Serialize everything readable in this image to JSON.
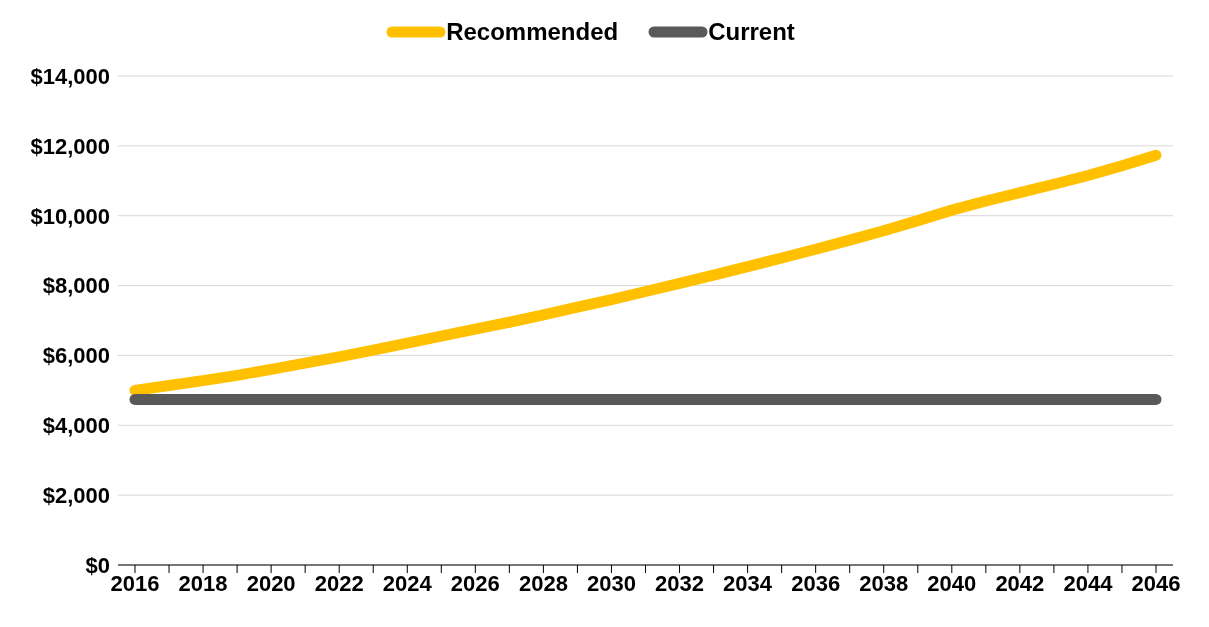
{
  "chart_data": {
    "type": "line",
    "categories": [
      "2016",
      null,
      "2018",
      null,
      "2020",
      null,
      "2022",
      null,
      "2024",
      null,
      "2026",
      null,
      "2028",
      null,
      "2030",
      null,
      "2032",
      null,
      "2034",
      null,
      "2036",
      null,
      "2038",
      null,
      "2040",
      null,
      "2042",
      null,
      "2044",
      null,
      "2046"
    ],
    "series": [
      {
        "name": "Recommended",
        "color": "#ffc000",
        "values": [
          5000,
          5140,
          5280,
          5430,
          5600,
          5780,
          5960,
          6150,
          6350,
          6550,
          6750,
          6950,
          7160,
          7380,
          7600,
          7830,
          8060,
          8300,
          8540,
          8790,
          9040,
          9300,
          9570,
          9860,
          10160,
          10420,
          10660,
          10900,
          11150,
          11430,
          11730
        ]
      },
      {
        "name": "Current",
        "color": "#595959",
        "values": [
          4740,
          4740,
          4740,
          4740,
          4740,
          4740,
          4740,
          4740,
          4740,
          4740,
          4740,
          4740,
          4740,
          4740,
          4740,
          4740,
          4740,
          4740,
          4740,
          4740,
          4740,
          4740,
          4740,
          4740,
          4740,
          4740,
          4740,
          4740,
          4740,
          4740,
          4740
        ]
      }
    ],
    "ylim": [
      0,
      14000
    ],
    "yticks": [
      {
        "value": 0,
        "label": "$0"
      },
      {
        "value": 2000,
        "label": "$2,000"
      },
      {
        "value": 4000,
        "label": "$4,000"
      },
      {
        "value": 6000,
        "label": "$6,000"
      },
      {
        "value": 8000,
        "label": "$8,000"
      },
      {
        "value": 10000,
        "label": "$10,000"
      },
      {
        "value": 12000,
        "label": "$12,000"
      },
      {
        "value": 14000,
        "label": "$14,000"
      }
    ],
    "grid": "y",
    "legend": "top",
    "marker": "none",
    "line_style": "solid"
  }
}
